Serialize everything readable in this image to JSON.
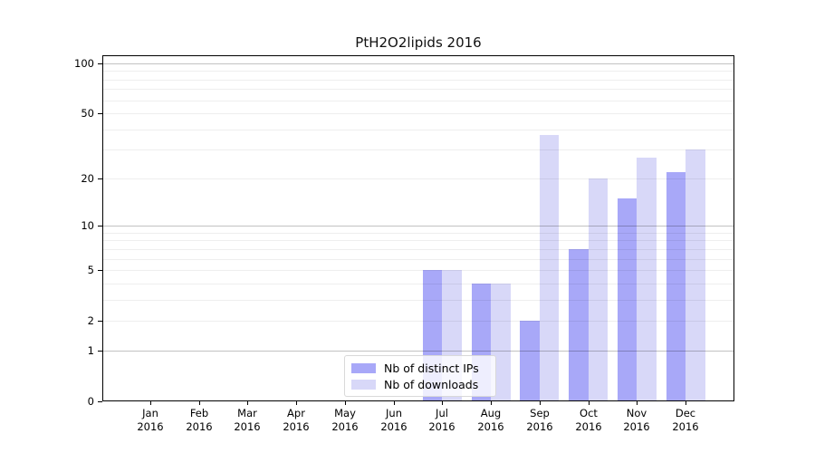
{
  "chart_data": {
    "type": "bar",
    "title": "PtH2O2lipids 2016",
    "categories": [
      "Jan",
      "Feb",
      "Mar",
      "Apr",
      "May",
      "Jun",
      "Jul",
      "Aug",
      "Sep",
      "Oct",
      "Nov",
      "Dec"
    ],
    "x_year_line": "2016",
    "series": [
      {
        "name": "Nb of distinct IPs",
        "color": "#a8a8f8",
        "values": [
          0,
          0,
          0,
          0,
          0,
          0,
          5,
          4,
          2,
          7,
          15,
          22
        ]
      },
      {
        "name": "Nb of downloads",
        "color": "#d8d8f8",
        "values": [
          0,
          0,
          0,
          0,
          0,
          0,
          5,
          4,
          37,
          20,
          27,
          30
        ]
      }
    ],
    "xlabel": "",
    "ylabel": "",
    "yscale": "log1p",
    "ylim": [
      0,
      100
    ],
    "y_ticks": [
      0,
      1,
      2,
      5,
      10,
      20,
      50,
      100
    ],
    "grid": "horizontal-log-minor-and-major",
    "legend_position": "bottom-center"
  }
}
